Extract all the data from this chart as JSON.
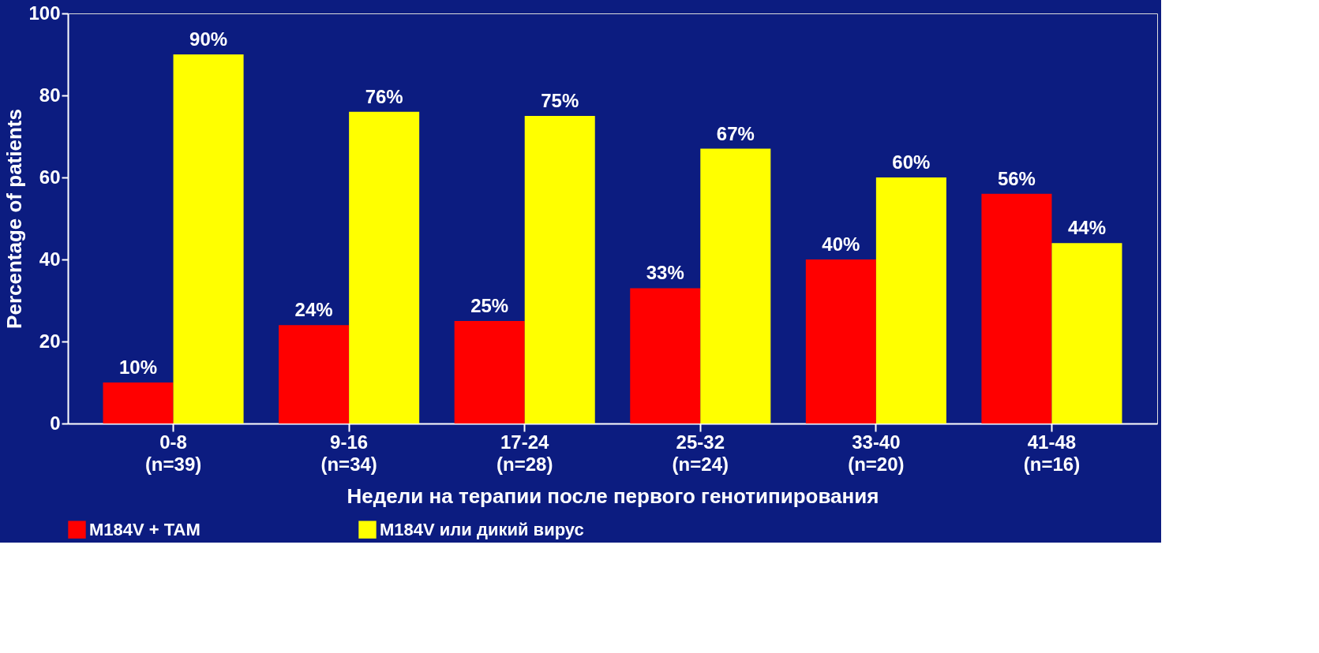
{
  "chart_data": {
    "type": "bar",
    "xlabel": "Недели на терапии после первого генотипирования",
    "ylabel": "Percentage of patients",
    "categories": [
      "0-8\n(n=39)",
      "9-16\n(n=34)",
      "17-24\n(n=28)",
      "25-32\n(n=24)",
      "33-40\n(n=20)",
      "41-48\n(n=16)"
    ],
    "series": [
      {
        "name": "M184V + TAM",
        "color": "#ff0000",
        "values": [
          10,
          24,
          25,
          33,
          40,
          56
        ],
        "value_labels": [
          "10%",
          "24%",
          "25%",
          "33%",
          "40%",
          "56%"
        ]
      },
      {
        "name": "M184V или дикий вирус",
        "color": "#ffff00",
        "values": [
          90,
          76,
          75,
          67,
          60,
          44
        ],
        "value_labels": [
          "90%",
          "76%",
          "75%",
          "67%",
          "60%",
          "44%"
        ]
      }
    ],
    "ylim": [
      0,
      100
    ],
    "yticks": [
      0,
      20,
      40,
      60,
      80,
      100
    ],
    "grid": false,
    "legend": "bottom"
  }
}
